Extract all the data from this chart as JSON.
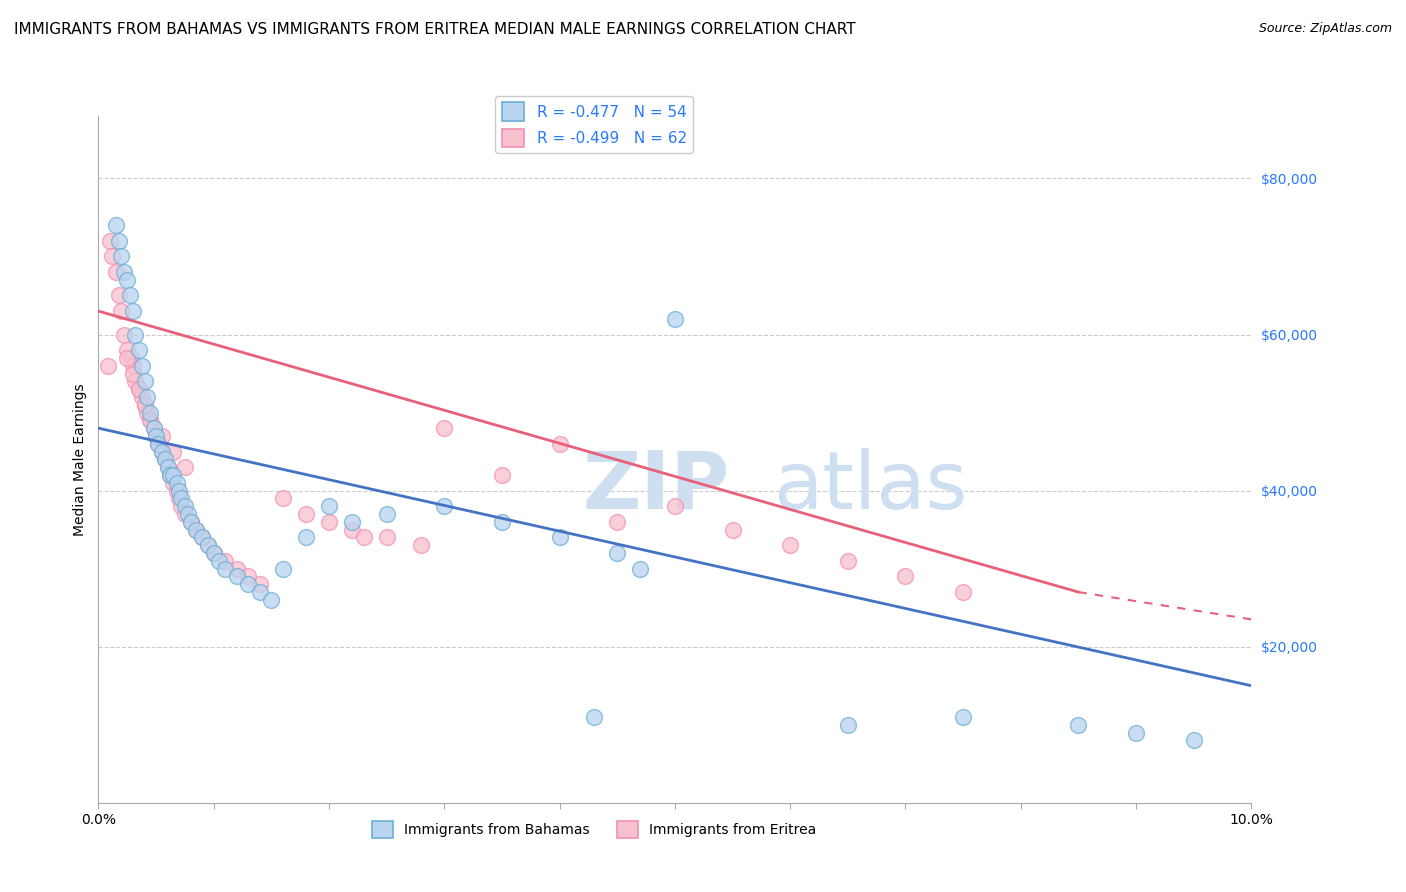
{
  "title": "IMMIGRANTS FROM BAHAMAS VS IMMIGRANTS FROM ERITREA MEDIAN MALE EARNINGS CORRELATION CHART",
  "source": "Source: ZipAtlas.com",
  "ylabel": "Median Male Earnings",
  "watermark": "ZIP\natlas",
  "xlim": [
    0.0,
    10.0
  ],
  "ylim": [
    0,
    88000
  ],
  "yticks": [
    20000,
    40000,
    60000,
    80000
  ],
  "ytick_labels": [
    "$20,000",
    "$40,000",
    "$60,000",
    "$80,000"
  ],
  "legend_r1": "R = -0.477",
  "legend_n1": "N = 54",
  "legend_r2": "R = -0.499",
  "legend_n2": "N = 62",
  "series1_facecolor": "#b8d4ef",
  "series1_edgecolor": "#6baed6",
  "series2_facecolor": "#f7c0ce",
  "series2_edgecolor": "#f48fb1",
  "line1_color": "#4472c4",
  "line2_color": "#e8607a",
  "title_fontsize": 11,
  "source_fontsize": 9,
  "axis_label_fontsize": 10,
  "legend_fontsize": 11,
  "watermark_color": "#cddff0",
  "bahamas_x": [
    0.15,
    0.18,
    0.2,
    0.22,
    0.25,
    0.27,
    0.3,
    0.32,
    0.35,
    0.38,
    0.4,
    0.42,
    0.45,
    0.48,
    0.5,
    0.52,
    0.55,
    0.58,
    0.6,
    0.62,
    0.65,
    0.68,
    0.7,
    0.72,
    0.75,
    0.78,
    0.8,
    0.85,
    0.9,
    0.95,
    1.0,
    1.05,
    1.1,
    1.2,
    1.3,
    1.4,
    1.5,
    1.6,
    1.8,
    2.0,
    2.2,
    2.5,
    3.0,
    3.5,
    4.0,
    4.5,
    4.7,
    5.0,
    6.5,
    7.5,
    8.5,
    9.0,
    9.5,
    4.3
  ],
  "bahamas_y": [
    74000,
    72000,
    70000,
    68000,
    67000,
    65000,
    63000,
    60000,
    58000,
    56000,
    54000,
    52000,
    50000,
    48000,
    47000,
    46000,
    45000,
    44000,
    43000,
    42000,
    42000,
    41000,
    40000,
    39000,
    38000,
    37000,
    36000,
    35000,
    34000,
    33000,
    32000,
    31000,
    30000,
    29000,
    28000,
    27000,
    26000,
    30000,
    34000,
    38000,
    36000,
    37000,
    38000,
    36000,
    34000,
    32000,
    30000,
    62000,
    10000,
    11000,
    10000,
    9000,
    8000,
    11000
  ],
  "eritrea_x": [
    0.08,
    0.1,
    0.12,
    0.15,
    0.18,
    0.2,
    0.22,
    0.25,
    0.28,
    0.3,
    0.32,
    0.35,
    0.38,
    0.4,
    0.42,
    0.45,
    0.48,
    0.5,
    0.52,
    0.55,
    0.58,
    0.6,
    0.62,
    0.65,
    0.68,
    0.7,
    0.72,
    0.75,
    0.8,
    0.85,
    0.9,
    0.95,
    1.0,
    1.1,
    1.2,
    1.4,
    1.6,
    1.8,
    2.0,
    2.2,
    2.5,
    2.8,
    3.0,
    3.5,
    4.0,
    4.5,
    5.0,
    5.5,
    6.0,
    6.5,
    7.0,
    7.5,
    0.25,
    0.3,
    0.35,
    0.4,
    0.45,
    0.55,
    0.65,
    0.75,
    1.3,
    2.3
  ],
  "eritrea_y": [
    56000,
    72000,
    70000,
    68000,
    65000,
    63000,
    60000,
    58000,
    57000,
    56000,
    54000,
    53000,
    52000,
    51000,
    50000,
    49000,
    48000,
    47000,
    46000,
    45000,
    44000,
    43000,
    42000,
    41000,
    40000,
    39000,
    38000,
    37000,
    36000,
    35000,
    34000,
    33000,
    32000,
    31000,
    30000,
    28000,
    39000,
    37000,
    36000,
    35000,
    34000,
    33000,
    48000,
    42000,
    46000,
    36000,
    38000,
    35000,
    33000,
    31000,
    29000,
    27000,
    57000,
    55000,
    53000,
    51000,
    49000,
    47000,
    45000,
    43000,
    29000,
    34000
  ]
}
